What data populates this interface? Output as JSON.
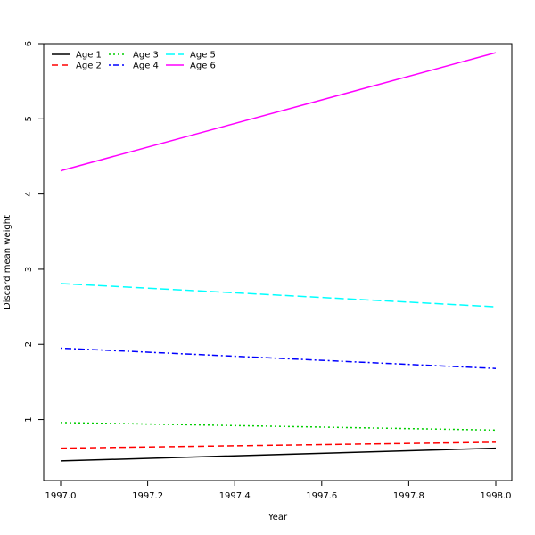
{
  "chart_data": {
    "type": "line",
    "title": "",
    "xlabel": "Year",
    "ylabel": "Discard mean weight",
    "xlim": [
      1997.0,
      1998.0
    ],
    "ylim": [
      0.2,
      6.0
    ],
    "x_ticks": [
      1997.0,
      1997.2,
      1997.4,
      1997.6,
      1997.8,
      1998.0
    ],
    "x_tick_labels": [
      "1997.0",
      "1997.2",
      "1997.4",
      "1997.6",
      "1997.8",
      "1998.0"
    ],
    "y_ticks": [
      1,
      2,
      3,
      4,
      5,
      6
    ],
    "y_tick_labels": [
      "1",
      "2",
      "3",
      "4",
      "5",
      "6"
    ],
    "grid": false,
    "legend": {
      "placement": "top-left",
      "columns": 3
    },
    "x": [
      1997.0,
      1998.0
    ],
    "series": [
      {
        "name": "Age 1",
        "values": [
          0.45,
          0.62
        ],
        "color": "#000000",
        "dash": "solid"
      },
      {
        "name": "Age 2",
        "values": [
          0.62,
          0.7
        ],
        "color": "#ff0000",
        "dash": "dashed"
      },
      {
        "name": "Age 3",
        "values": [
          0.96,
          0.86
        ],
        "color": "#00cd00",
        "dash": "dotted"
      },
      {
        "name": "Age 4",
        "values": [
          1.95,
          1.68
        ],
        "color": "#0000ff",
        "dash": "dotdash"
      },
      {
        "name": "Age 5",
        "values": [
          2.81,
          2.5
        ],
        "color": "#00ffff",
        "dash": "longdash"
      },
      {
        "name": "Age 6",
        "values": [
          4.31,
          5.88
        ],
        "color": "#ff00ff",
        "dash": "solid"
      }
    ]
  }
}
